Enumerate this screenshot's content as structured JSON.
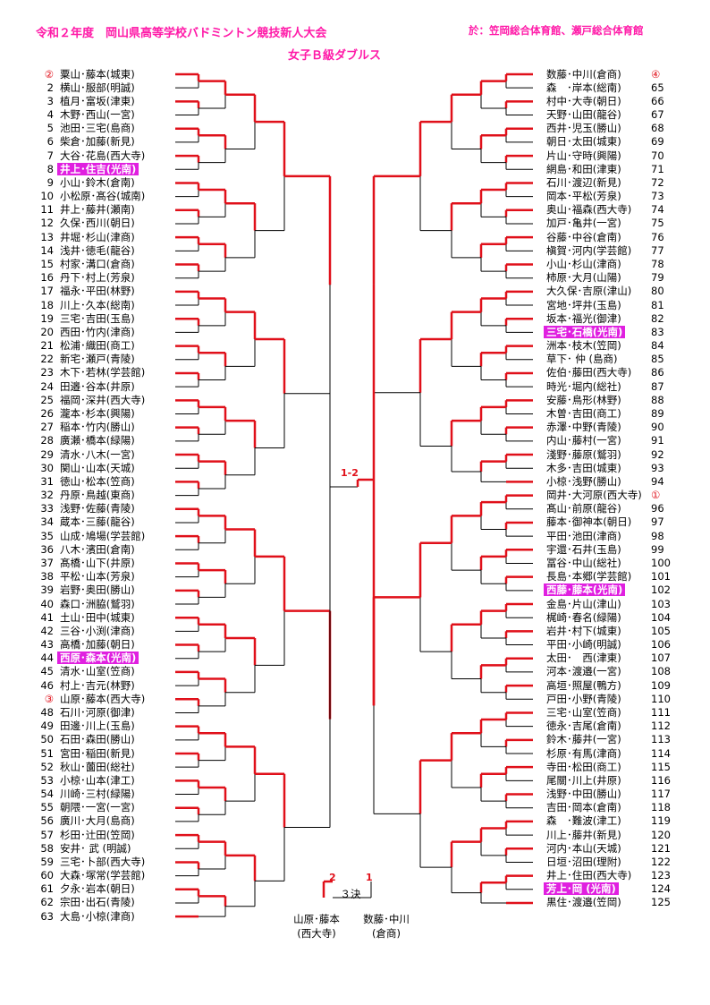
{
  "header": {
    "title": "令和２年度　岡山県高等学校バドミントン競技新人大会",
    "venue": "於：笠岡総合体育館、瀬戸総合体育館",
    "event": "女子Ｂ級ダブルス"
  },
  "colors": {
    "header": "#ff1aa8",
    "line": "#e0101a",
    "highlight": "#e020e0"
  },
  "bracket": {
    "left": [
      {
        "seed": "②",
        "name": "粟山･藤本(城東)",
        "mark": true
      },
      {
        "seed": "2",
        "name": "横山･服部(明誠)"
      },
      {
        "seed": "3",
        "name": "植月･富坂(津東)"
      },
      {
        "seed": "4",
        "name": "木野･西山(一宮)"
      },
      {
        "seed": "5",
        "name": "池田･三宅(島商)"
      },
      {
        "seed": "6",
        "name": "柴倉･加藤(新見)"
      },
      {
        "seed": "7",
        "name": "大谷･花島(西大寺)"
      },
      {
        "seed": "8",
        "name": "井上･住吉(光南)",
        "hl": true
      },
      {
        "seed": "9",
        "name": "小山･鈴木(倉南)"
      },
      {
        "seed": "10",
        "name": "小松原･髙谷(城南)"
      },
      {
        "seed": "11",
        "name": "井上･藤井(瀬南)"
      },
      {
        "seed": "12",
        "name": "久保･西川(朝日)"
      },
      {
        "seed": "13",
        "name": "井堀･杉山(津商)"
      },
      {
        "seed": "14",
        "name": "浅井･徳毛(龍谷)"
      },
      {
        "seed": "15",
        "name": "村家･溝口(倉商)"
      },
      {
        "seed": "16",
        "name": "丹下･村上(芳泉)"
      },
      {
        "seed": "17",
        "name": "福永･平田(林野)"
      },
      {
        "seed": "18",
        "name": "川上･久本(総南)"
      },
      {
        "seed": "19",
        "name": "三宅･吉田(玉島)"
      },
      {
        "seed": "20",
        "name": "西田･竹内(津商)"
      },
      {
        "seed": "21",
        "name": "松浦･織田(商工)"
      },
      {
        "seed": "22",
        "name": "新宅･瀬戸(青陵)"
      },
      {
        "seed": "23",
        "name": "木下･若林(学芸館)"
      },
      {
        "seed": "24",
        "name": "田邉･谷本(井原)"
      },
      {
        "seed": "25",
        "name": "福岡･深井(西大寺)"
      },
      {
        "seed": "26",
        "name": "瀧本･杉本(興陽)"
      },
      {
        "seed": "27",
        "name": "稲本･竹内(勝山)"
      },
      {
        "seed": "28",
        "name": "廣瀬･橋本(緑陽)"
      },
      {
        "seed": "29",
        "name": "清水･八木(一宮)"
      },
      {
        "seed": "30",
        "name": "関山･山本(天城)"
      },
      {
        "seed": "31",
        "name": "徳山･松本(笠商)"
      },
      {
        "seed": "32",
        "name": "丹原･鳥越(東商)"
      },
      {
        "seed": "33",
        "name": "浅野･佐藤(青陵)"
      },
      {
        "seed": "34",
        "name": "蔵本･三藤(龍谷)"
      },
      {
        "seed": "35",
        "name": "山成･鳩場(学芸館)"
      },
      {
        "seed": "36",
        "name": "八木･濱田(倉南)"
      },
      {
        "seed": "37",
        "name": "髙橋･山下(井原)"
      },
      {
        "seed": "38",
        "name": "平松･山本(芳泉)"
      },
      {
        "seed": "39",
        "name": "岩野･奥田(勝山)"
      },
      {
        "seed": "40",
        "name": "森口･洲脇(鷲羽)"
      },
      {
        "seed": "41",
        "name": "土山･田中(城東)"
      },
      {
        "seed": "42",
        "name": "三谷･小渕(津商)"
      },
      {
        "seed": "43",
        "name": "高橋･加藤(朝日)"
      },
      {
        "seed": "44",
        "name": "西原･森本(光南)",
        "hl": true
      },
      {
        "seed": "45",
        "name": "清水･山室(笠商)"
      },
      {
        "seed": "46",
        "name": "村上･吉元(林野)"
      },
      {
        "seed": "③",
        "name": "山原･藤本(西大寺)",
        "mark": true
      },
      {
        "seed": "48",
        "name": "石川･河原(御津)"
      },
      {
        "seed": "49",
        "name": "田邊･川上(玉島)"
      },
      {
        "seed": "50",
        "name": "石田･森田(勝山)"
      },
      {
        "seed": "51",
        "name": "宮田･稲田(新見)"
      },
      {
        "seed": "52",
        "name": "秋山･薗田(総社)"
      },
      {
        "seed": "53",
        "name": "小椋･山本(津工)"
      },
      {
        "seed": "54",
        "name": "川崎･三村(緑陽)"
      },
      {
        "seed": "55",
        "name": "朝隈･一宮(一宮)"
      },
      {
        "seed": "56",
        "name": "廣川･大月(島商)"
      },
      {
        "seed": "57",
        "name": "杉田･辻田(笠岡)"
      },
      {
        "seed": "58",
        "name": "安井･ 武 (明誠)"
      },
      {
        "seed": "59",
        "name": "三宅･卜部(西大寺)"
      },
      {
        "seed": "60",
        "name": "大森･塚常(学芸館)"
      },
      {
        "seed": "61",
        "name": "夕永･岩本(朝日)"
      },
      {
        "seed": "62",
        "name": "宗田･出石(青陵)"
      },
      {
        "seed": "63",
        "name": "大島･小椋(津商)"
      }
    ],
    "right": [
      {
        "seed": "④",
        "name": "数藤･中川(倉商)",
        "mark": true
      },
      {
        "seed": "65",
        "name": "森　･岸本(総南)"
      },
      {
        "seed": "66",
        "name": "村中･大寺(朝日)"
      },
      {
        "seed": "67",
        "name": "天野･山田(龍谷)"
      },
      {
        "seed": "68",
        "name": "西井･児玉(勝山)"
      },
      {
        "seed": "69",
        "name": "朝日･太田(城東)"
      },
      {
        "seed": "70",
        "name": "片山･守時(興陽)"
      },
      {
        "seed": "71",
        "name": "網島･和田(津東)"
      },
      {
        "seed": "72",
        "name": "石川･渡辺(新見)"
      },
      {
        "seed": "73",
        "name": "岡本･平松(芳泉)"
      },
      {
        "seed": "74",
        "name": "奥山･福森(西大寺)"
      },
      {
        "seed": "75",
        "name": "加戸･亀井(一宮)"
      },
      {
        "seed": "76",
        "name": "谷藤･中谷(倉南)"
      },
      {
        "seed": "77",
        "name": "槇賀･河内(学芸館)"
      },
      {
        "seed": "78",
        "name": "小山･杉山(津商)"
      },
      {
        "seed": "79",
        "name": "柿原･大月(山陽)"
      },
      {
        "seed": "80",
        "name": "大久保･吉原(津山)"
      },
      {
        "seed": "81",
        "name": "宮地･坪井(玉島)"
      },
      {
        "seed": "82",
        "name": "坂本･福光(御津)"
      },
      {
        "seed": "83",
        "name": "三宅･石橋(光南)",
        "hl": true
      },
      {
        "seed": "84",
        "name": "洲本･枝木(笠岡)"
      },
      {
        "seed": "85",
        "name": "草下･ 仲 (島商)"
      },
      {
        "seed": "86",
        "name": "佐伯･藤田(西大寺)"
      },
      {
        "seed": "87",
        "name": "時光･堀内(総社)"
      },
      {
        "seed": "88",
        "name": "安藤･鳥形(林野)"
      },
      {
        "seed": "89",
        "name": "木曽･吉田(商工)"
      },
      {
        "seed": "90",
        "name": "赤澤･中野(青陵)"
      },
      {
        "seed": "91",
        "name": "内山･藤村(一宮)"
      },
      {
        "seed": "92",
        "name": "淺野･藤原(鷲羽)"
      },
      {
        "seed": "93",
        "name": "木多･吉田(城東)"
      },
      {
        "seed": "94",
        "name": "小椋･浅野(勝山)"
      },
      {
        "seed": "①",
        "name": "岡井･大河原(西大寺)",
        "mark": true
      },
      {
        "seed": "96",
        "name": "髙山･前原(龍谷)"
      },
      {
        "seed": "97",
        "name": "藤本･御神本(朝日)"
      },
      {
        "seed": "98",
        "name": "平田･池田(津商)"
      },
      {
        "seed": "99",
        "name": "宇還･石井(玉島)"
      },
      {
        "seed": "100",
        "name": "冨谷･中山(総社)"
      },
      {
        "seed": "101",
        "name": "長島･本郷(学芸館)"
      },
      {
        "seed": "102",
        "name": "西藤･藤本(光南)",
        "hl": true
      },
      {
        "seed": "103",
        "name": "金島･片山(津山)"
      },
      {
        "seed": "104",
        "name": "梶崎･春名(緑陽)"
      },
      {
        "seed": "105",
        "name": "岩井･村下(城東)"
      },
      {
        "seed": "106",
        "name": "平田･小崎(明誠)"
      },
      {
        "seed": "107",
        "name": "太田･　西(津東)"
      },
      {
        "seed": "108",
        "name": "河本･渡邉(一宮)"
      },
      {
        "seed": "109",
        "name": "高垣･照屋(鴨方)"
      },
      {
        "seed": "110",
        "name": "戸田･小野(青陵)"
      },
      {
        "seed": "111",
        "name": "三宅･山室(笠商)"
      },
      {
        "seed": "112",
        "name": "徳永･吉尾(倉南)"
      },
      {
        "seed": "113",
        "name": "鈴木･藤井(一宮)"
      },
      {
        "seed": "114",
        "name": "杉原･有馬(津商)"
      },
      {
        "seed": "115",
        "name": "寺田･松田(商工)"
      },
      {
        "seed": "116",
        "name": "尾關･川上(井原)"
      },
      {
        "seed": "117",
        "name": "浅野･中田(勝山)"
      },
      {
        "seed": "118",
        "name": "吉田･岡本(倉南)"
      },
      {
        "seed": "119",
        "name": "森　･難波(津工)"
      },
      {
        "seed": "120",
        "name": "川上･藤井(新見)"
      },
      {
        "seed": "121",
        "name": "河内･本山(天城)"
      },
      {
        "seed": "122",
        "name": "日垣･沼田(理附)"
      },
      {
        "seed": "123",
        "name": "井上･住田(西大寺)"
      },
      {
        "seed": "124",
        "name": "芳上･岡 (光南)",
        "hl": true
      },
      {
        "seed": "125",
        "name": "黒住･渡邉(笠岡)"
      }
    ]
  },
  "final": {
    "label": "1-2"
  },
  "third_place": {
    "label": "３決",
    "score_left": "2",
    "score_right": "1",
    "left_name": "山原･藤本",
    "left_school": "(西大寺)",
    "right_name": "数藤･中川",
    "right_school": "(倉商)"
  }
}
